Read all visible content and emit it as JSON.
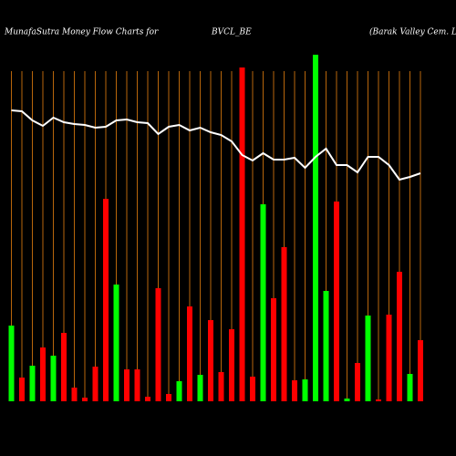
{
  "chart_data": {
    "type": "bar",
    "title": "MunafaSutra  Money Flow  Charts for",
    "subtitle": "BVCL_BE",
    "annotation": "(Barak Valley Cem. Ltd.) M",
    "ylim": [
      0,
      380
    ],
    "grid": true,
    "grid_color": "#b8660b",
    "series": [
      {
        "name": "money flow",
        "type": "bar",
        "colors": [
          "#00ff00",
          "#ff0000",
          "#00ff00",
          "#ff0000",
          "#00ff00",
          "#ff0000",
          "#ff0000",
          "#ff0000",
          "#ff0000",
          "#ff0000",
          "#00ff00",
          "#ff0000",
          "#ff0000",
          "#ff0000",
          "#ff0000",
          "#ff0000",
          "#00ff00",
          "#ff0000",
          "#00ff00",
          "#ff0000",
          "#ff0000",
          "#ff0000",
          "#ff0000",
          "#ff0000",
          "#00ff00",
          "#ff0000",
          "#ff0000",
          "#ff0000",
          "#00ff00",
          "#00ff00",
          "#00ff00",
          "#ff0000",
          "#00ff00",
          "#ff0000",
          "#00ff00",
          "#ff0000",
          "#ff0000",
          "#ff0000",
          "#00ff00",
          "#ff0000"
        ],
        "values": [
          83,
          26,
          39,
          59,
          50,
          75,
          15,
          4,
          38,
          222,
          128,
          35,
          35,
          5,
          124,
          8,
          22,
          104,
          29,
          89,
          32,
          79,
          366,
          27,
          216,
          113,
          169,
          23,
          24,
          380,
          121,
          219,
          3,
          42,
          94,
          2,
          95,
          142,
          30,
          67
        ]
      },
      {
        "name": "price",
        "type": "line",
        "color": "#ffffff",
        "values": [
          319,
          318,
          308,
          302,
          311,
          306,
          304,
          303,
          300,
          301,
          308,
          309,
          306,
          305,
          293,
          301,
          303,
          297,
          300,
          295,
          292,
          285,
          270,
          264,
          272,
          265,
          265,
          267,
          256,
          268,
          277,
          259,
          259,
          251,
          268,
          268,
          259,
          243,
          246,
          250
        ]
      }
    ]
  }
}
